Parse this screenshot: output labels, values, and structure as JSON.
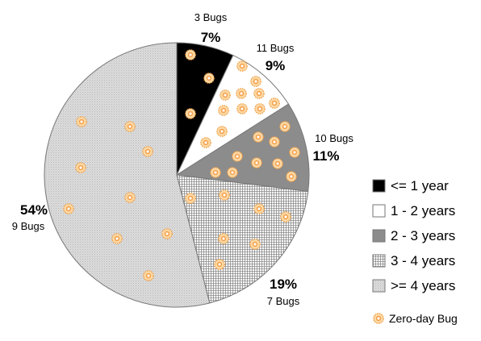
{
  "chart_data": {
    "type": "pie",
    "title": "",
    "start": "12 o'clock, clockwise",
    "slices": [
      {
        "label": "<= 1 year",
        "pct_label": "7%",
        "percent": 7,
        "bugs_label": "3 Bugs",
        "bugs": 3,
        "fill": "black",
        "color": "#000000"
      },
      {
        "label": "1 - 2 years",
        "pct_label": "9%",
        "percent": 9,
        "bugs_label": "11 Bugs",
        "bugs": 11,
        "fill": "white",
        "color": "#ffffff"
      },
      {
        "label": "2 - 3 years",
        "pct_label": "11%",
        "percent": 11,
        "bugs_label": "10 Bugs",
        "bugs": 10,
        "fill": "gray",
        "color": "#8c8c8c"
      },
      {
        "label": "3 - 4 years",
        "pct_label": "19%",
        "percent": 19,
        "bugs_label": "7 Bugs",
        "bugs": 7,
        "fill": "grid",
        "color": "#e8e8e8"
      },
      {
        "label": ">= 4 years",
        "pct_label": "54%",
        "percent": 54,
        "bugs_label": "9 Bugs",
        "bugs": 9,
        "fill": "dots",
        "color": "#d9d9d9"
      }
    ],
    "legend_position": "right",
    "marker_legend": "Zero-day Bug",
    "marker_color": "#f5a04a"
  }
}
